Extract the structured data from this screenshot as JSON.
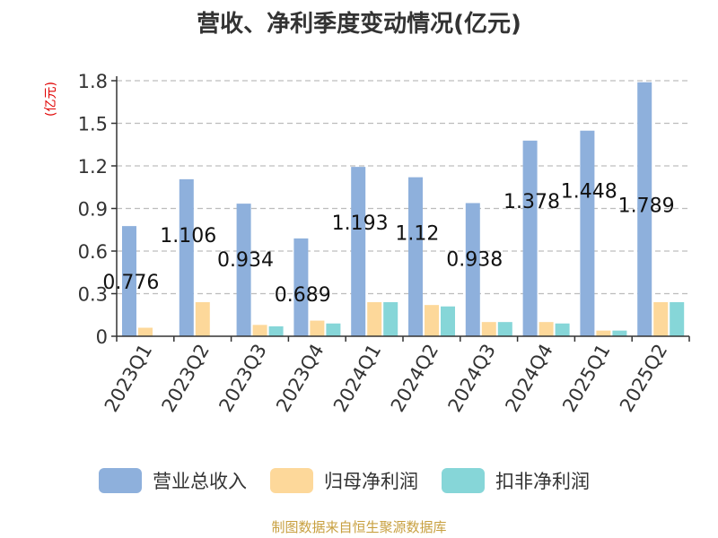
{
  "page_title": "营收、净利季度变动情况(亿元)",
  "unit_label": "(亿元)",
  "source_note": "制图数据来自恒生聚源数据库",
  "chart_data": {
    "type": "bar",
    "title": "营收、净利季度变动情况(亿元)",
    "xlabel": "",
    "ylabel": "(亿元)",
    "ylim": [
      0,
      1.8
    ],
    "yticks": [
      "0",
      "0.3",
      "0.6",
      "0.9",
      "1.2",
      "1.5",
      "1.8"
    ],
    "grid": true,
    "legend": "bottom",
    "categories": [
      "2023Q1",
      "2023Q2",
      "2023Q3",
      "2023Q4",
      "2024Q1",
      "2024Q2",
      "2024Q3",
      "2024Q4",
      "2025Q1",
      "2025Q2"
    ],
    "series": [
      {
        "name": "营业总收入",
        "color": "#8eb0dc",
        "values": [
          0.776,
          1.106,
          0.934,
          0.689,
          1.193,
          1.12,
          0.938,
          1.378,
          1.448,
          1.789
        ]
      },
      {
        "name": "归母净利润",
        "color": "#fdd89a",
        "values": [
          0.06,
          0.24,
          0.08,
          0.11,
          0.24,
          0.22,
          0.1,
          0.1,
          0.04,
          0.24
        ]
      },
      {
        "name": "扣非净利润",
        "color": "#86d6d8",
        "values": [
          0.0,
          0.0,
          0.07,
          0.09,
          0.24,
          0.21,
          0.1,
          0.09,
          0.04,
          0.24
        ]
      }
    ],
    "data_labels": [
      "0.776",
      "1.106",
      "0.934",
      "0.689",
      "1.193",
      "1.12",
      "0.938",
      "1.378",
      "1.448",
      "1.789"
    ]
  }
}
